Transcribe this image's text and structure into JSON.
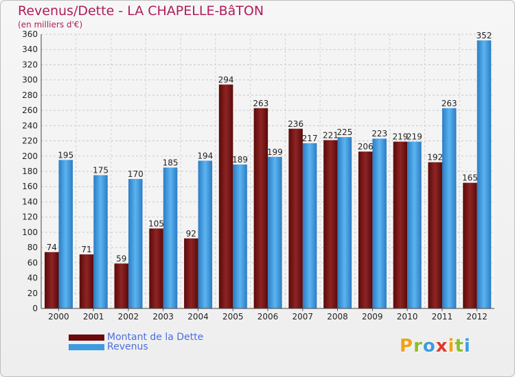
{
  "header": {
    "title": "Revenus/Dette - LA CHAPELLE-BâTON",
    "subtitle": "(en milliers d'€)"
  },
  "chart_data": {
    "type": "bar",
    "categories": [
      "2000",
      "2001",
      "2002",
      "2003",
      "2004",
      "2005",
      "2006",
      "2007",
      "2008",
      "2009",
      "2010",
      "2011",
      "2012"
    ],
    "series": [
      {
        "name": "Montant de la Dette",
        "values": [
          74,
          71,
          59,
          105,
          92,
          294,
          263,
          236,
          221,
          206,
          219,
          192,
          165
        ],
        "color": "#7a1414"
      },
      {
        "name": "Revenus",
        "values": [
          195,
          175,
          170,
          185,
          194,
          189,
          199,
          217,
          225,
          223,
          219,
          263,
          352
        ],
        "color": "#3d9be0"
      }
    ],
    "ylim": [
      0,
      360
    ],
    "yticks": [
      0,
      20,
      40,
      60,
      80,
      100,
      120,
      140,
      160,
      180,
      200,
      220,
      240,
      260,
      280,
      300,
      320,
      340,
      360
    ],
    "grid": true,
    "legend_position": "bottom-left"
  },
  "legend": {
    "items": [
      {
        "label": "Montant de la Dette",
        "color": "#6a0a0a"
      },
      {
        "label": "Revenus",
        "color": "#3d9be0"
      }
    ]
  },
  "logo": {
    "letters": [
      "P",
      "r",
      "o",
      "x",
      "i",
      "t",
      "i"
    ],
    "colors": [
      "#f0a21a",
      "#8bbf2a",
      "#3d9be0",
      "#e0372b",
      "#f0a21a",
      "#8bbf2a",
      "#3d9be0"
    ]
  }
}
